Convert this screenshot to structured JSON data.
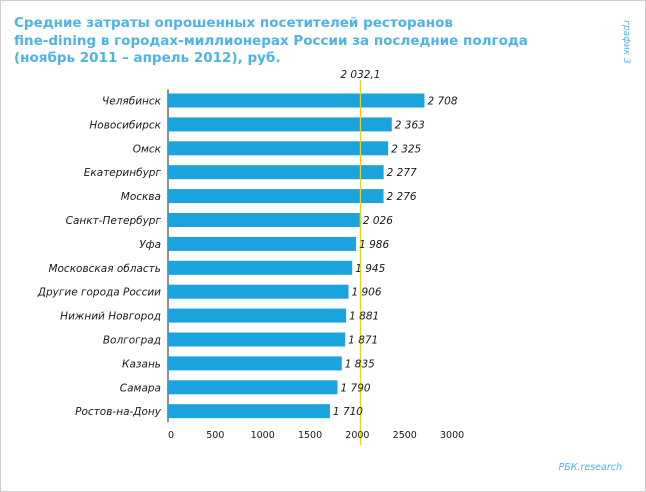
{
  "header": {
    "title_lines": [
      "Средние затраты опрошенных посетителей ресторанов",
      "fine-dining в городах-миллионерах России за последние полгода",
      "(ноябрь 2011 – апрель 2012), руб."
    ],
    "side_label": "график 3"
  },
  "footer": {
    "source": "РБК.research"
  },
  "colors": {
    "bar": "#1aa3dc",
    "title": "#4db4e4",
    "average_line": "#e8d21e"
  },
  "chart_data": {
    "type": "bar",
    "orientation": "horizontal",
    "title": "Средние затраты опрошенных посетителей ресторанов fine-dining в городах-миллионерах России за последние полгода (ноябрь 2011 – апрель 2012), руб.",
    "xlabel": "",
    "ylabel": "",
    "xlim": [
      0,
      3000
    ],
    "x_ticks": [
      "0",
      "500",
      "1000",
      "1500",
      "2000",
      "2500",
      "3000"
    ],
    "grid": false,
    "categories": [
      "Челябинск",
      "Новосибирск",
      "Омск",
      "Екатеринбург",
      "Москва",
      "Санкт-Петербург",
      "Уфа",
      "Московская область",
      "Другие города России",
      "Нижний Новгород",
      "Волгоград",
      "Казань",
      "Самара",
      "Ростов-на-Дону"
    ],
    "values": [
      2708,
      2363,
      2325,
      2277,
      2276,
      2026,
      1986,
      1945,
      1906,
      1881,
      1871,
      1835,
      1790,
      1710
    ],
    "value_labels": [
      "2 708",
      "2 363",
      "2 325",
      "2 277",
      "2 276",
      "2 026",
      "1 986",
      "1 945",
      "1 906",
      "1 881",
      "1 871",
      "1 835",
      "1 790",
      "1 710"
    ],
    "reference_line": {
      "value": 2032.1,
      "label": "2 032,1"
    }
  }
}
